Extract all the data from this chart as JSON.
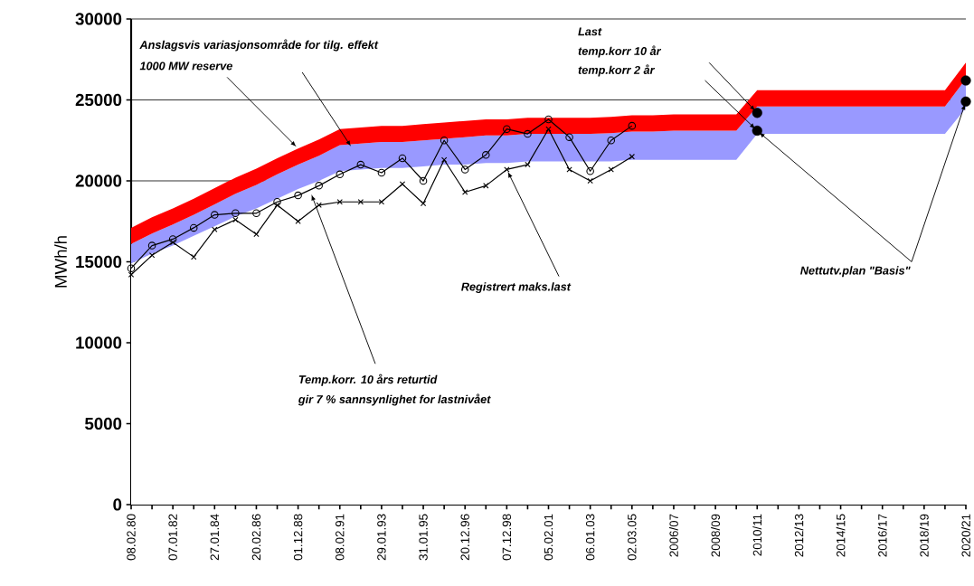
{
  "chart_data": {
    "type": "line",
    "ylabel": "MWh/h",
    "categories": [
      "08.02.80",
      null,
      "07.01.82",
      null,
      "27.01.84",
      null,
      "20.02.86",
      null,
      "01.12.88",
      null,
      "08.02.91",
      null,
      "29.01.93",
      null,
      "31.01.95",
      null,
      "20.12.96",
      null,
      "07.12.98",
      null,
      "05.02.01",
      null,
      "06.01.03",
      null,
      "02.03.05",
      null,
      "2006/07",
      null,
      "2008/09",
      null,
      "2010/11",
      null,
      "2012/13",
      null,
      "2014/15",
      null,
      "2016/17",
      null,
      "2018/19",
      null,
      "2020/21"
    ],
    "stacked": true,
    "grid": "y",
    "ylim": [
      0,
      30000
    ],
    "yticks": [
      0,
      5000,
      10000,
      15000,
      20000,
      25000,
      30000
    ],
    "series": [
      {
        "type": "area",
        "color": "#ffffff",
        "values": [
          14900,
          15500,
          16000,
          16600,
          17200,
          17800,
          18300,
          18900,
          19500,
          20000,
          20600,
          20700,
          20800,
          20800,
          20900,
          21000,
          21000,
          21100,
          21100,
          21200,
          21200,
          21200,
          21200,
          21200,
          21300,
          21300,
          21300,
          21300,
          21300,
          21300,
          22900,
          22900,
          22900,
          22900,
          22900,
          22900,
          22900,
          22900,
          22900,
          22900,
          24500
        ]
      },
      {
        "type": "area",
        "color": "#9999ff",
        "values": [
          1200,
          1250,
          1300,
          1300,
          1350,
          1400,
          1450,
          1500,
          1500,
          1550,
          1600,
          1600,
          1600,
          1600,
          1600,
          1600,
          1700,
          1700,
          1700,
          1700,
          1700,
          1700,
          1700,
          1750,
          1750,
          1750,
          1800,
          1800,
          1800,
          1800,
          1700,
          1700,
          1700,
          1700,
          1700,
          1700,
          1700,
          1700,
          1700,
          1700,
          1800
        ]
      },
      {
        "type": "area",
        "color": "#ff0000",
        "values": [
          1000,
          1000,
          1000,
          1000,
          1000,
          1000,
          1000,
          1000,
          1000,
          1000,
          1000,
          1000,
          1000,
          1000,
          1000,
          1000,
          1000,
          1000,
          1000,
          1000,
          1000,
          1000,
          1000,
          1000,
          1000,
          1000,
          1000,
          1000,
          1000,
          1000,
          1000,
          1000,
          1000,
          1000,
          1000,
          1000,
          1000,
          1000,
          1000,
          1000,
          1000
        ]
      },
      {
        "type": "line",
        "color": "#000000",
        "marker": "circle",
        "line_style": "solid",
        "values": [
          14600,
          16000,
          16400,
          17100,
          17900,
          18000,
          18000,
          18700,
          19100,
          19700,
          20400,
          21000,
          20500,
          21400,
          20000,
          22500,
          20700,
          21600,
          23200,
          22900,
          23800,
          22700,
          20600,
          22500,
          23400,
          null,
          null,
          null,
          null,
          null,
          null,
          null,
          null,
          null,
          null,
          null,
          null,
          null,
          null,
          null,
          null
        ]
      },
      {
        "type": "line",
        "color": "#000000",
        "marker": "cross",
        "line_style": "solid",
        "values": [
          14200,
          15400,
          16200,
          15300,
          17000,
          17600,
          16700,
          18500,
          17500,
          18500,
          18700,
          18700,
          18700,
          19800,
          18600,
          21300,
          19300,
          19700,
          20700,
          21000,
          23200,
          20700,
          20000,
          20700,
          21500,
          null,
          null,
          null,
          null,
          null,
          null,
          null,
          null,
          null,
          null,
          null,
          null,
          null,
          null,
          null,
          null
        ]
      },
      {
        "type": "scatter",
        "color": "#000000",
        "marker": "circle",
        "x": [
          "2010/11",
          "2010/11",
          "2020/21",
          "2020/21"
        ],
        "values": [
          24200,
          23100,
          26200,
          24900
        ]
      }
    ],
    "annotations": [
      "Anslagsvis variasjonsområde for tilg. effekt",
      {
        "text": "1000 MW reserve",
        "x": "01.12.88",
        "y": 22000
      },
      "Last",
      "temp.korr 10 år",
      "temp.korr 2 år",
      {
        "text": "Nettutv.plan \"Basis\"",
        "x": "2010/11",
        "y": 23100
      },
      {
        "text": "Registrert maks.last",
        "x": "07.12.98",
        "y": 20700
      },
      "Temp.korr. 10 års returtid",
      "gir 7 % sannsynlighet for lastnivået"
    ]
  }
}
